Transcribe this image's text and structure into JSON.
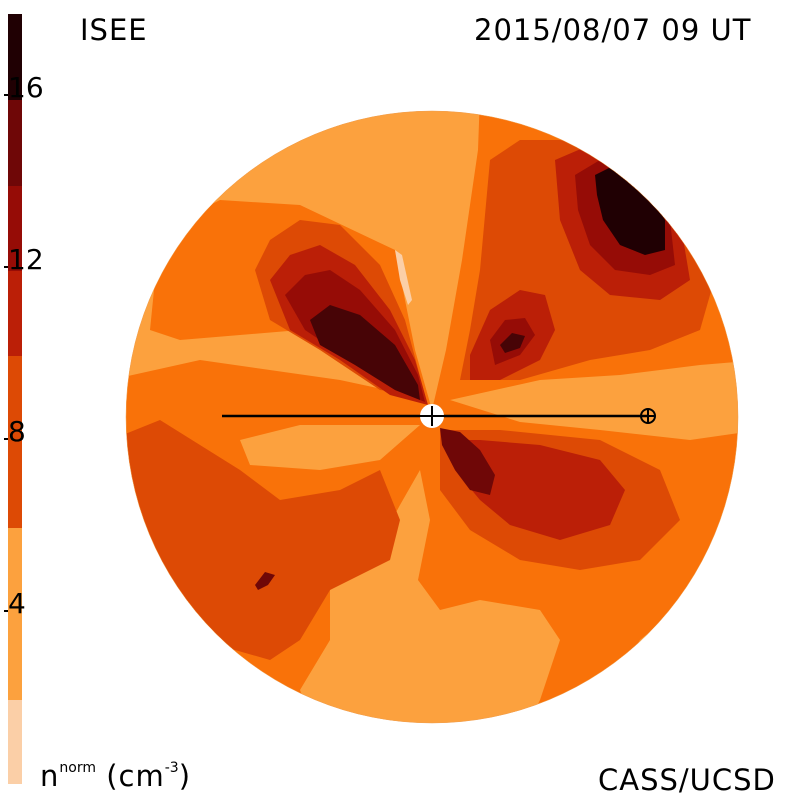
{
  "header": {
    "left_label": "ISEE",
    "timestamp": "2015/08/07 09 UT"
  },
  "footer": {
    "unit_base": "n",
    "unit_sup": "norm",
    "unit_paren_open": " (cm",
    "unit_exp": "-3",
    "unit_paren_close": ")",
    "credit": "CASS/UCSD"
  },
  "colorbar": {
    "ticks": [
      "4",
      "8",
      "12",
      "16"
    ],
    "palette": [
      "#fbcfa7",
      "#fca13e",
      "#f97209",
      "#dd4a05",
      "#bb1f07",
      "#960c06",
      "#6f0707",
      "#470406",
      "#200003"
    ]
  }
}
